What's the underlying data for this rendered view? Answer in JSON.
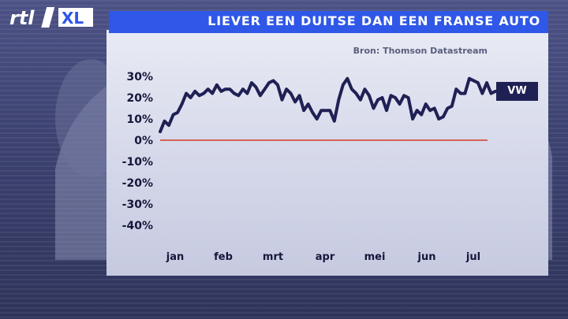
{
  "brand": {
    "logo_text_1": "rtl",
    "logo_text_2": "XL"
  },
  "header": {
    "title": "LIEVER EEN DUITSE DAN EEN FRANSE AUTO"
  },
  "source": "Bron: Thomson Datastream",
  "colors": {
    "title_bar": "#2f57e8",
    "line": "#1f2054",
    "zero_line": "#d23a2a",
    "legend_bg": "#1f2054"
  },
  "chart_data": {
    "type": "line",
    "title": "LIEVER EEN DUITSE DAN EEN FRANSE AUTO",
    "xlabel": "",
    "ylabel": "",
    "ylim": [
      -45,
      35
    ],
    "yticks": [
      30,
      20,
      10,
      0,
      -10,
      -20,
      -30,
      -40
    ],
    "ytick_labels": [
      "30%",
      "20%",
      "10%",
      "0%",
      "-10%",
      "-20%",
      "-30%",
      "-40%"
    ],
    "xtick_labels": [
      "jan",
      "feb",
      "mrt",
      "apr",
      "mei",
      "jun",
      "jul"
    ],
    "legend": {
      "position": "right",
      "entries": [
        "VW"
      ]
    },
    "series": [
      {
        "name": "VW",
        "values": [
          4,
          9,
          7,
          12,
          13,
          17,
          22,
          20,
          23,
          21,
          22,
          24,
          22,
          26,
          23,
          24,
          24,
          22,
          21,
          24,
          22,
          27,
          25,
          21,
          24,
          27,
          28,
          26,
          19,
          24,
          22,
          18,
          21,
          14,
          17,
          13,
          10,
          14,
          14,
          14,
          9,
          19,
          26,
          29,
          24,
          22,
          19,
          24,
          21,
          15,
          19,
          20,
          14,
          21,
          20,
          17,
          21,
          20,
          10,
          14,
          12,
          17,
          14,
          15,
          10,
          11,
          15,
          16,
          24,
          22,
          22,
          29,
          28,
          27,
          22,
          27,
          22,
          23
        ]
      }
    ]
  }
}
